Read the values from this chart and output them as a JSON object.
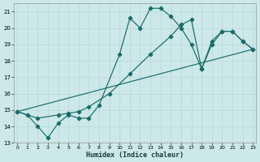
{
  "xlabel": "Humidex (Indice chaleur)",
  "xlim": [
    -0.3,
    23.3
  ],
  "ylim": [
    13,
    21.5
  ],
  "xticks": [
    0,
    1,
    2,
    3,
    4,
    5,
    6,
    7,
    8,
    9,
    10,
    11,
    12,
    13,
    14,
    15,
    16,
    17,
    18,
    19,
    20,
    21,
    22,
    23
  ],
  "yticks": [
    13,
    14,
    15,
    16,
    17,
    18,
    19,
    20,
    21
  ],
  "bg_color": "#cce8e8",
  "grid_color": "#b8d8d8",
  "line_color": "#1a6b6b",
  "line1_x": [
    0,
    1,
    2,
    3,
    4,
    5,
    6,
    7,
    8,
    10,
    11,
    12,
    13,
    14,
    15,
    16,
    17,
    18,
    19,
    20,
    21,
    22,
    23
  ],
  "line1_y": [
    14.9,
    14.7,
    14.0,
    13.3,
    14.2,
    14.7,
    14.5,
    14.5,
    15.3,
    18.4,
    20.6,
    20.0,
    21.2,
    21.2,
    20.7,
    20.0,
    19.0,
    17.5,
    19.0,
    19.8,
    19.8,
    19.2,
    18.7
  ],
  "line2_x": [
    0,
    23
  ],
  "line2_y": [
    14.9,
    18.7
  ],
  "line3_x": [
    0,
    2,
    4,
    5,
    6,
    7,
    9,
    11,
    13,
    15,
    16,
    17,
    18,
    19,
    20,
    21,
    22,
    23
  ],
  "line3_y": [
    14.9,
    14.5,
    14.7,
    14.8,
    14.9,
    15.2,
    16.0,
    17.2,
    18.4,
    19.5,
    20.2,
    20.5,
    17.5,
    19.2,
    19.8,
    19.8,
    19.2,
    18.7
  ]
}
